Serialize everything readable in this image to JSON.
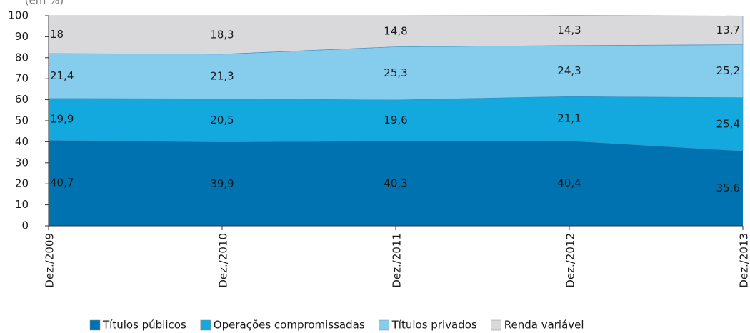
{
  "chart_data": {
    "type": "area",
    "stacked": true,
    "ylabel": "(em %)",
    "categories": [
      "Dez./2009",
      "Dez./2010",
      "Dez./2011",
      "Dez./2012",
      "Dez./2013"
    ],
    "series": [
      {
        "name": "Títulos públicos",
        "color": "#0072b0",
        "values": [
          40.7,
          39.9,
          40.3,
          40.4,
          35.6
        ],
        "value_labels": [
          "40,7",
          "39,9",
          "40,3",
          "40,4",
          "35,6"
        ]
      },
      {
        "name": "Operações compromissadas",
        "color": "#13a8de",
        "values": [
          19.9,
          20.5,
          19.6,
          21.1,
          25.4
        ],
        "value_labels": [
          "19,9",
          "20,5",
          "19,6",
          "21,1",
          "25,4"
        ]
      },
      {
        "name": "Títulos privados",
        "color": "#86cded",
        "values": [
          21.4,
          21.3,
          25.3,
          24.3,
          25.2
        ],
        "value_labels": [
          "21,4",
          "21,3",
          "25,3",
          "24,3",
          "25,2"
        ]
      },
      {
        "name": "Renda variável",
        "color": "#d9d9db",
        "values": [
          18,
          18.3,
          14.8,
          14.3,
          13.7
        ],
        "value_labels": [
          "18",
          "18,3",
          "14,8",
          "14,3",
          "13,7"
        ]
      }
    ],
    "ylim": [
      0,
      100
    ],
    "yticks": [
      0,
      10,
      20,
      30,
      40,
      50,
      60,
      70,
      80,
      90,
      100
    ],
    "legend": "bottom"
  }
}
